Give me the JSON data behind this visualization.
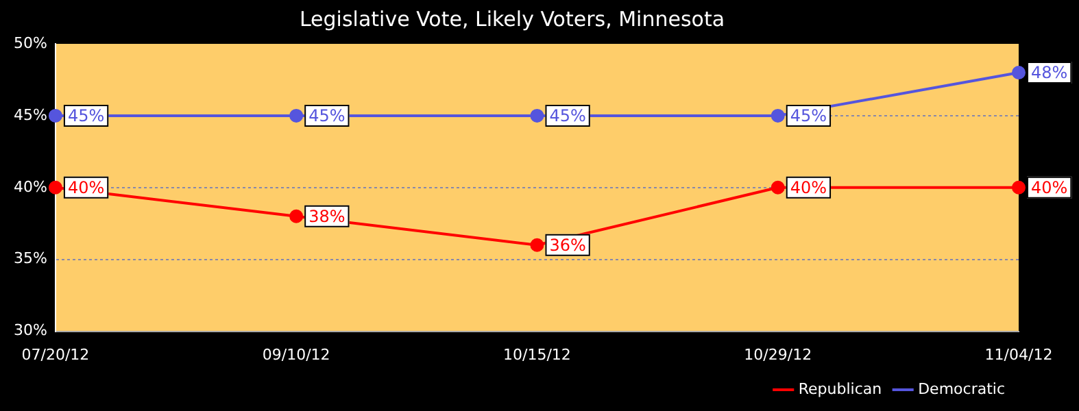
{
  "chart_data": {
    "type": "line",
    "title": "Legislative Vote, Likely Voters, Minnesota",
    "categories": [
      "07/20/12",
      "09/10/12",
      "10/15/12",
      "10/29/12",
      "11/04/12"
    ],
    "series": [
      {
        "name": "Republican",
        "color": "#ff0000",
        "values": [
          40,
          38,
          36,
          40,
          40
        ],
        "value_labels": [
          "40%",
          "38%",
          "36%",
          "40%",
          "40%"
        ]
      },
      {
        "name": "Democratic",
        "color": "#5555dd",
        "values": [
          45,
          45,
          45,
          45,
          48
        ],
        "value_labels": [
          "45%",
          "45%",
          "45%",
          "45%",
          "48%"
        ]
      }
    ],
    "ylim": [
      30,
      50
    ],
    "yticks": [
      {
        "value": 30,
        "label": "30%"
      },
      {
        "value": 35,
        "label": "35%"
      },
      {
        "value": 40,
        "label": "40%"
      },
      {
        "value": 45,
        "label": "45%"
      },
      {
        "value": 50,
        "label": "50%"
      }
    ],
    "grid": "y",
    "legend": "bottom right",
    "marker": "circle",
    "line_style": "solid"
  }
}
